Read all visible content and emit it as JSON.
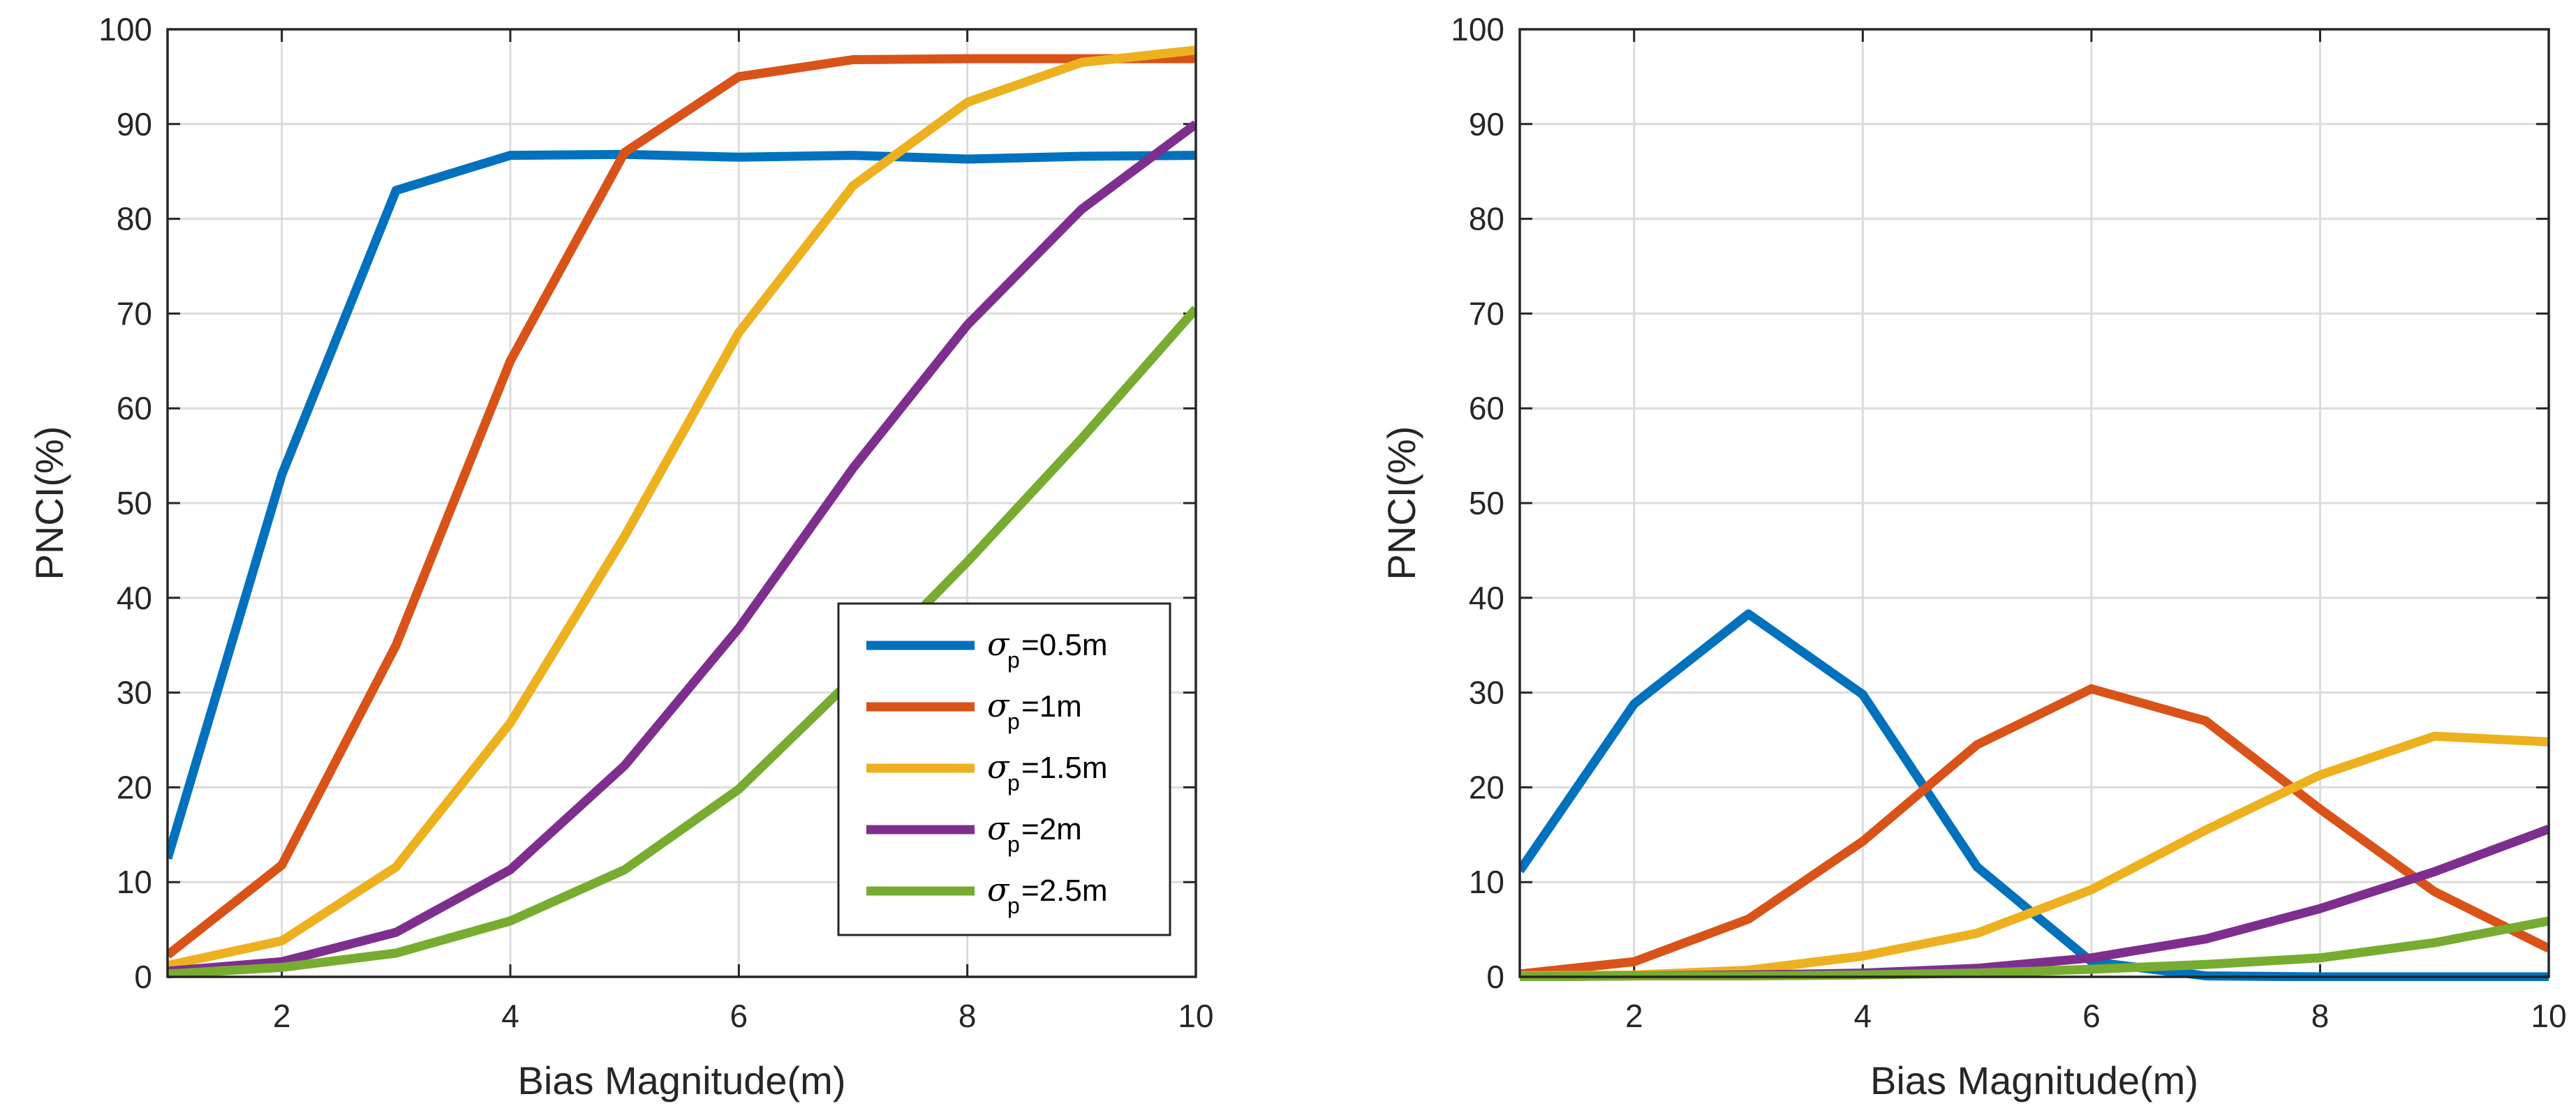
{
  "chart_data": [
    {
      "type": "line",
      "xlabel": "Bias Magnitude(m)",
      "ylabel": "PNCI(%)",
      "xlim": [
        1,
        10
      ],
      "ylim": [
        0,
        100
      ],
      "xticks": [
        "2",
        "4",
        "6",
        "8",
        "10"
      ],
      "yticks": [
        "0",
        "10",
        "20",
        "30",
        "40",
        "50",
        "60",
        "70",
        "80",
        "90",
        "100"
      ],
      "grid": true,
      "legend_position": "bottom-right",
      "x": [
        1,
        2,
        3,
        4,
        5,
        6,
        7,
        8,
        9,
        10
      ],
      "series": [
        {
          "symbol": "σ",
          "sub": "p",
          "label": "=0.5m",
          "color": "#0072BD",
          "values": [
            12.5,
            53,
            83,
            86.7,
            86.8,
            86.5,
            86.7,
            86.3,
            86.6,
            86.7
          ]
        },
        {
          "symbol": "σ",
          "sub": "p",
          "label": "=1m",
          "color": "#D95319",
          "values": [
            2.3,
            11.8,
            35,
            65,
            87,
            95,
            96.8,
            96.9,
            96.9,
            96.9
          ]
        },
        {
          "symbol": "σ",
          "sub": "p",
          "label": "=1.5m",
          "color": "#EDB120",
          "values": [
            1.2,
            3.8,
            11.6,
            26.8,
            46.5,
            68,
            83.5,
            92.3,
            96.5,
            97.8
          ]
        },
        {
          "symbol": "σ",
          "sub": "p",
          "label": "=2m",
          "color": "#7E2F8E",
          "values": [
            0.6,
            1.6,
            4.7,
            11.3,
            22.3,
            36.8,
            53.7,
            68.8,
            81,
            90
          ]
        },
        {
          "symbol": "σ",
          "sub": "p",
          "label": "=2.5m",
          "color": "#77AC30",
          "values": [
            0.3,
            1.0,
            2.5,
            5.9,
            11.3,
            19.8,
            31.5,
            43.8,
            56.8,
            70.5
          ]
        }
      ]
    },
    {
      "type": "line",
      "xlabel": "Bias Magnitude(m)",
      "ylabel": "PNCI(%)",
      "xlim": [
        1,
        10
      ],
      "ylim": [
        0,
        100
      ],
      "xticks": [
        "2",
        "4",
        "6",
        "8",
        "10"
      ],
      "yticks": [
        "0",
        "10",
        "20",
        "30",
        "40",
        "50",
        "60",
        "70",
        "80",
        "90",
        "100"
      ],
      "grid": true,
      "x": [
        1,
        2,
        3,
        4,
        5,
        6,
        7,
        8,
        9,
        10
      ],
      "series": [
        {
          "label": "=0.5m",
          "color": "#0072BD",
          "values": [
            11.2,
            28.8,
            38.3,
            29.8,
            11.6,
            1.6,
            0.1,
            0,
            0,
            0
          ]
        },
        {
          "label": "=1m",
          "color": "#D95319",
          "values": [
            0.3,
            1.6,
            6.1,
            14.3,
            24.5,
            30.4,
            27,
            17.7,
            9,
            3
          ]
        },
        {
          "label": "=1.5m",
          "color": "#EDB120",
          "values": [
            0.1,
            0.2,
            0.7,
            2.2,
            4.6,
            9.2,
            15.5,
            21.3,
            25.4,
            24.8
          ]
        },
        {
          "label": "=2m",
          "color": "#7E2F8E",
          "values": [
            0,
            0.1,
            0.2,
            0.4,
            0.9,
            2,
            4,
            7.2,
            11.1,
            15.6
          ]
        },
        {
          "label": "=2.5m",
          "color": "#77AC30",
          "values": [
            0,
            0.1,
            0.1,
            0.2,
            0.4,
            0.8,
            1.3,
            2,
            3.6,
            5.9
          ]
        }
      ]
    }
  ]
}
